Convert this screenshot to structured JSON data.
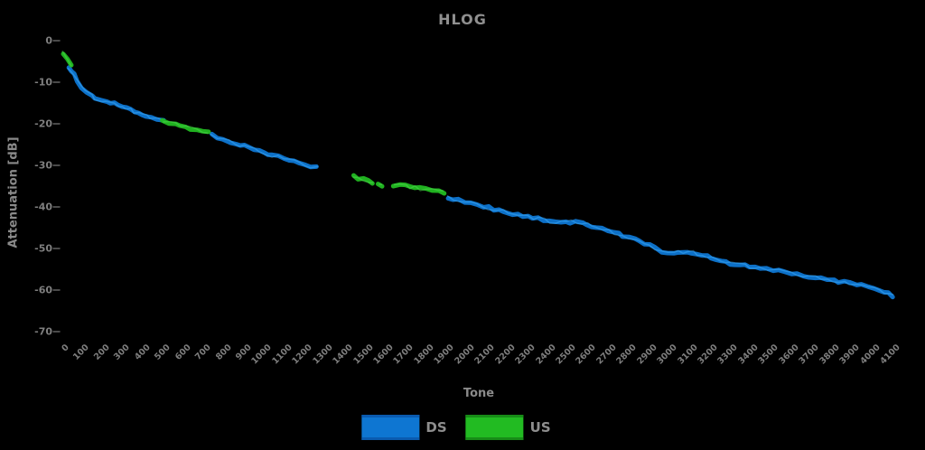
{
  "title": "HLOG",
  "axes": {
    "x_label": "Tone",
    "y_label": "Attenuation [dB]"
  },
  "legend": {
    "ds_label": "DS",
    "us_label": "US"
  },
  "colors": {
    "background": "#000000",
    "text": "#8e8e8e",
    "ds": "#0e76d2",
    "ds_light": "#45b4ff",
    "ds_edge": "#0a5bb0",
    "us": "#22bb22",
    "us_light": "#55e055",
    "us_edge": "#178c17",
    "tick": "#6e6e6e"
  },
  "chart_data": {
    "type": "line",
    "title": "HLOG",
    "xlabel": "Tone",
    "ylabel": "Attenuation [dB]",
    "xlim": [
      0,
      4100
    ],
    "ylim": [
      -70,
      0
    ],
    "grid": false,
    "legend_position": "bottom",
    "x_ticks": [
      0,
      100,
      200,
      300,
      400,
      500,
      600,
      700,
      800,
      900,
      1000,
      1100,
      1200,
      1300,
      1400,
      1500,
      1600,
      1700,
      1800,
      1900,
      2000,
      2100,
      2200,
      2300,
      2400,
      2500,
      2600,
      2700,
      2800,
      2900,
      3000,
      3100,
      3200,
      3300,
      3400,
      3500,
      3600,
      3700,
      3800,
      3900,
      4000,
      4100
    ],
    "y_ticks": [
      0,
      -10,
      -20,
      -30,
      -40,
      -50,
      -60,
      -70
    ],
    "series": [
      {
        "name": "DS",
        "color": "#0e76d2",
        "segments": [
          [
            [
              36,
              -6.6
            ],
            [
              60,
              -8.2
            ],
            [
              80,
              -9.8
            ],
            [
              98,
              -11.2
            ],
            [
              120,
              -12.2
            ],
            [
              150,
              -13.2
            ],
            [
              165,
              -13.8
            ],
            [
              200,
              -14.2
            ],
            [
              240,
              -14.9
            ],
            [
              280,
              -15.4
            ],
            [
              320,
              -16.1
            ],
            [
              360,
              -17.0
            ],
            [
              400,
              -17.9
            ],
            [
              440,
              -18.5
            ],
            [
              475,
              -18.9
            ],
            [
              505,
              -19.3
            ]
          ],
          [
            [
              740,
              -22.6
            ],
            [
              800,
              -23.8
            ],
            [
              860,
              -24.7
            ],
            [
              903,
              -25.4
            ],
            [
              950,
              -26.1
            ],
            [
              1000,
              -27.0
            ],
            [
              1040,
              -27.6
            ],
            [
              1100,
              -28.4
            ],
            [
              1150,
              -29.0
            ],
            [
              1200,
              -29.8
            ],
            [
              1261,
              -30.6
            ]
          ],
          [
            [
              1909,
              -37.6
            ],
            [
              1960,
              -38.3
            ],
            [
              2020,
              -39.1
            ],
            [
              2080,
              -39.9
            ],
            [
              2155,
              -40.8
            ],
            [
              2230,
              -41.7
            ],
            [
              2300,
              -42.4
            ],
            [
              2380,
              -43.1
            ],
            [
              2440,
              -43.8
            ],
            [
              2510,
              -43.6
            ],
            [
              2570,
              -43.9
            ],
            [
              2640,
              -44.8
            ],
            [
              2700,
              -45.8
            ],
            [
              2770,
              -46.9
            ],
            [
              2830,
              -47.9
            ],
            [
              2900,
              -49.3
            ],
            [
              2960,
              -50.6
            ],
            [
              3020,
              -50.9
            ],
            [
              3090,
              -50.6
            ],
            [
              3160,
              -51.5
            ],
            [
              3230,
              -52.5
            ],
            [
              3300,
              -53.5
            ],
            [
              3370,
              -54.2
            ],
            [
              3450,
              -54.8
            ],
            [
              3540,
              -55.3
            ],
            [
              3630,
              -56.3
            ],
            [
              3720,
              -57.0
            ],
            [
              3810,
              -57.7
            ],
            [
              3890,
              -58.3
            ],
            [
              3950,
              -58.9
            ],
            [
              4010,
              -59.7
            ],
            [
              4060,
              -60.4
            ],
            [
              4100,
              -61.4
            ]
          ]
        ]
      },
      {
        "name": "US",
        "color": "#22bb22",
        "segments": [
          [
            [
              8,
              -3.0
            ],
            [
              30,
              -4.6
            ],
            [
              50,
              -6.2
            ]
          ],
          [
            [
              500,
              -19.2
            ],
            [
              560,
              -20.1
            ],
            [
              640,
              -21.1
            ],
            [
              724,
              -22.1
            ]
          ],
          [
            [
              1439,
              -32.6
            ],
            [
              1490,
              -33.4
            ],
            [
              1538,
              -34.2
            ]
          ],
          [
            [
              1566,
              -34.7
            ],
            [
              1580,
              -34.9
            ]
          ],
          [
            [
              1640,
              -34.7
            ],
            [
              1700,
              -35.0
            ],
            [
              1770,
              -35.6
            ],
            [
              1830,
              -36.0
            ],
            [
              1886,
              -36.6
            ]
          ]
        ]
      }
    ]
  }
}
